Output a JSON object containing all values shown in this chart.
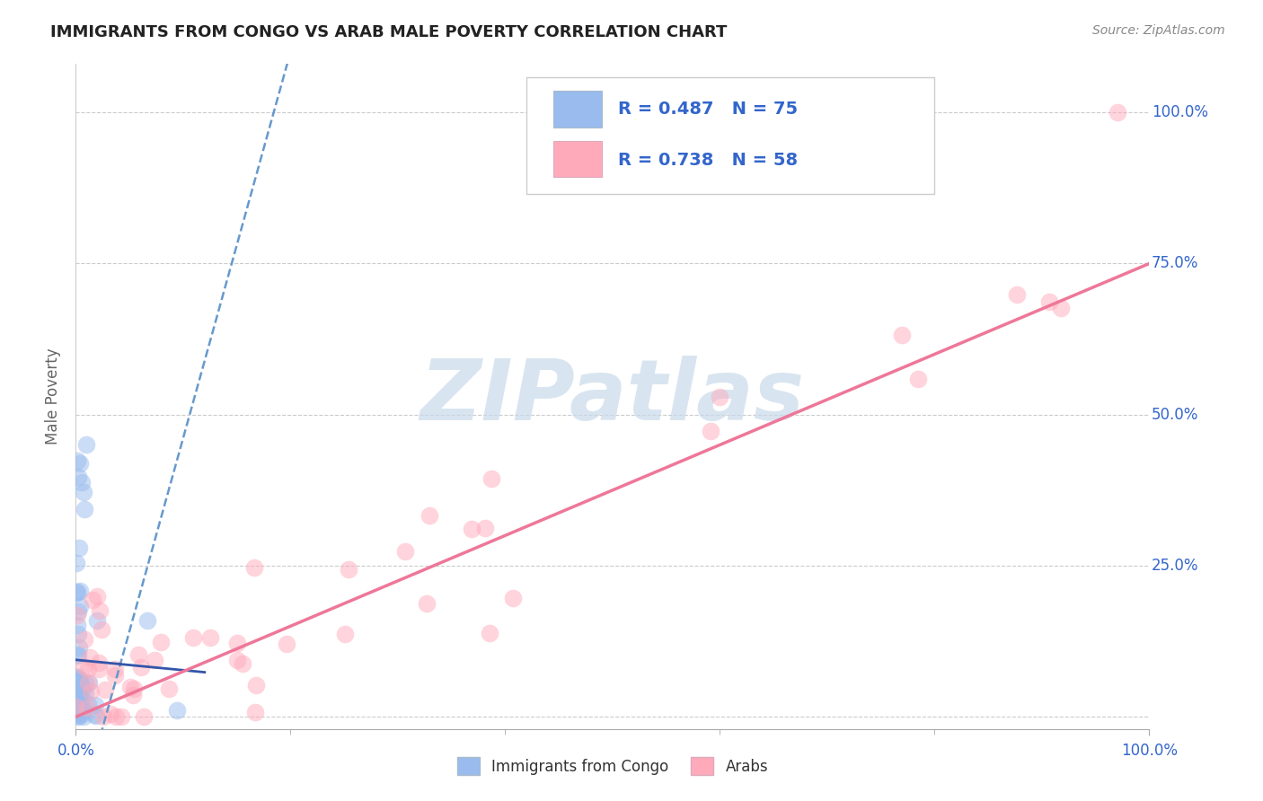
{
  "title": "IMMIGRANTS FROM CONGO VS ARAB MALE POVERTY CORRELATION CHART",
  "source_text": "Source: ZipAtlas.com",
  "ylabel": "Male Poverty",
  "xlim": [
    0.0,
    1.0
  ],
  "ylim": [
    -0.02,
    1.08
  ],
  "watermark": "ZIPatlas",
  "watermark_color": "#c8daea",
  "congo_color": "#99bbee",
  "arab_color": "#ffaabb",
  "congo_edge_color": "#88aadd",
  "arab_edge_color": "#ee88aa",
  "congo_trend_color": "#6699cc",
  "arab_trend_color": "#ee7799",
  "background_color": "#ffffff",
  "grid_color": "#cccccc",
  "title_color": "#222222",
  "axis_label_color": "#666666",
  "tick_color": "#3366cc",
  "legend_text_color": "#3366cc",
  "legend_label_color": "#222222",
  "source_color": "#888888",
  "congo_r": 0.487,
  "congo_n": 75,
  "arab_r": 0.738,
  "arab_n": 58,
  "arab_trend_x": [
    0.0,
    1.0
  ],
  "arab_trend_y": [
    0.0,
    0.75
  ]
}
